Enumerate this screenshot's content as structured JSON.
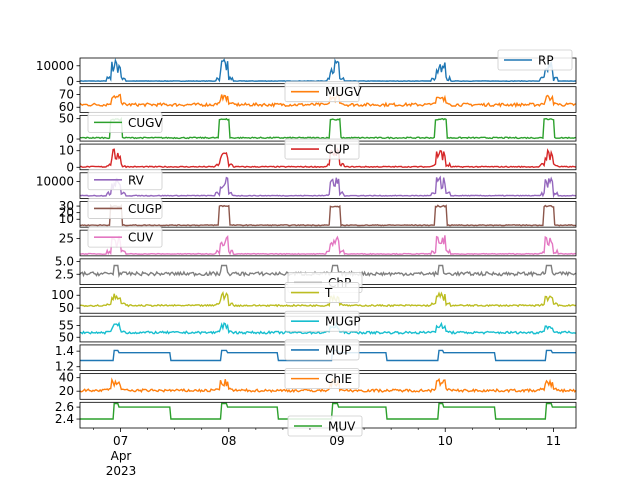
{
  "chart_data": {
    "type": "line",
    "x_axis": {
      "range": [
        "2023-04-06 15:00",
        "2023-04-11 05:00"
      ],
      "ticks": [
        {
          "date": "2023-04-07",
          "label": "07"
        },
        {
          "date": "2023-04-08",
          "label": "08"
        },
        {
          "date": "2023-04-09",
          "label": "09"
        },
        {
          "date": "2023-04-10",
          "label": "10"
        },
        {
          "date": "2023-04-11",
          "label": "11"
        }
      ],
      "sublabel_month": "Apr",
      "sublabel_year": "2023"
    },
    "event_centers": [
      "2023-04-06 23:00",
      "2023-04-07 23:00",
      "2023-04-08 23:30",
      "2023-04-09 23:00",
      "2023-04-10 23:00"
    ],
    "panels": [
      {
        "name": "RP",
        "color": "#1f77b4",
        "ylim": [
          -1500,
          15000
        ],
        "yticks": [
          {
            "v": 0,
            "label": "0"
          },
          {
            "v": 10000,
            "label": "10000"
          }
        ],
        "baseline": 200,
        "noise": 150,
        "peak": 14000,
        "style": "spike",
        "legend": "top-right"
      },
      {
        "name": "MUGV",
        "color": "#ff7f0e",
        "ylim": [
          56,
          76
        ],
        "yticks": [
          {
            "v": 60,
            "label": "60"
          },
          {
            "v": 70,
            "label": "70"
          }
        ],
        "baseline": 62,
        "noise": 1.2,
        "peak": 70,
        "style": "spike",
        "legend": "top-center"
      },
      {
        "name": "CUGV",
        "color": "#2ca02c",
        "ylim": [
          -5,
          58
        ],
        "yticks": [
          {
            "v": 0,
            "label": "0"
          },
          {
            "v": 50,
            "label": "50"
          }
        ],
        "baseline": 3,
        "noise": 1.5,
        "peak": 50,
        "style": "plateau",
        "legend": "top-left"
      },
      {
        "name": "CUP",
        "color": "#d62728",
        "ylim": [
          -1.5,
          14
        ],
        "yticks": [
          {
            "v": 0,
            "label": "0"
          },
          {
            "v": 10,
            "label": "10"
          }
        ],
        "baseline": 0.3,
        "noise": 0.3,
        "peak": 11,
        "style": "spike",
        "legend": "top-center"
      },
      {
        "name": "RV",
        "color": "#9467bd",
        "ylim": [
          -1500,
          16000
        ],
        "yticks": [
          {
            "v": 10000,
            "label": "10000"
          }
        ],
        "baseline": 400,
        "noise": 250,
        "peak": 13000,
        "style": "spike",
        "legend": "top-left"
      },
      {
        "name": "CUGP",
        "color": "#8c564b",
        "ylim": [
          -2,
          37
        ],
        "yticks": [
          {
            "v": 10,
            "label": "10"
          },
          {
            "v": 20,
            "label": "20"
          },
          {
            "v": 30,
            "label": "30"
          }
        ],
        "baseline": 1,
        "noise": 0.6,
        "peak": 31,
        "style": "plateau",
        "legend": "top-left"
      },
      {
        "name": "CUV",
        "color": "#e377c2",
        "ylim": [
          -2,
          38
        ],
        "yticks": [
          {
            "v": 25,
            "label": "25"
          }
        ],
        "baseline": 1,
        "noise": 0.6,
        "peak": 30,
        "style": "spike",
        "legend": "top-left"
      },
      {
        "name": "ChP",
        "color": "#7f7f7f",
        "ylim": [
          0.5,
          5.5
        ],
        "yticks": [
          {
            "v": 2.5,
            "label": "2.5"
          },
          {
            "v": 5.0,
            "label": "5.0"
          }
        ],
        "baseline": 2.6,
        "noise": 0.35,
        "peak": 4.2,
        "style": "noise",
        "legend": "bottom-center"
      },
      {
        "name": "T",
        "color": "#bcbd22",
        "ylim": [
          30,
          130
        ],
        "yticks": [
          {
            "v": 50,
            "label": "50"
          },
          {
            "v": 100,
            "label": "100"
          }
        ],
        "baseline": 60,
        "noise": 3,
        "peak": 110,
        "style": "spike",
        "legend": "top-center"
      },
      {
        "name": "MUGP",
        "color": "#17becf",
        "ylim": [
          48,
          59
        ],
        "yticks": [
          {
            "v": 50,
            "label": "50"
          },
          {
            "v": 55,
            "label": "55"
          }
        ],
        "baseline": 52,
        "noise": 0.5,
        "peak": 56,
        "style": "spike",
        "legend": "top-center"
      },
      {
        "name": "MUP",
        "color": "#1f77b4",
        "ylim": [
          1.15,
          1.48
        ],
        "yticks": [
          {
            "v": 1.2,
            "label": "1.2"
          },
          {
            "v": 1.4,
            "label": "1.4"
          }
        ],
        "baseline": 1.28,
        "noise": 0.0,
        "peak": 1.38,
        "style": "step",
        "legend": "top-center"
      },
      {
        "name": "ChIE",
        "color": "#ff7f0e",
        "ylim": [
          8,
          46
        ],
        "yticks": [
          {
            "v": 20,
            "label": "20"
          },
          {
            "v": 40,
            "label": "40"
          }
        ],
        "baseline": 21,
        "noise": 2,
        "peak": 38,
        "style": "spike",
        "legend": "top-center"
      },
      {
        "name": "MUV",
        "color": "#2ca02c",
        "ylim": [
          2.25,
          2.68
        ],
        "yticks": [
          {
            "v": 2.4,
            "label": "2.4"
          },
          {
            "v": 2.6,
            "label": "2.6"
          }
        ],
        "baseline": 2.4,
        "noise": 0.0,
        "peak": 2.6,
        "style": "step",
        "legend": "bottom-center"
      }
    ]
  }
}
